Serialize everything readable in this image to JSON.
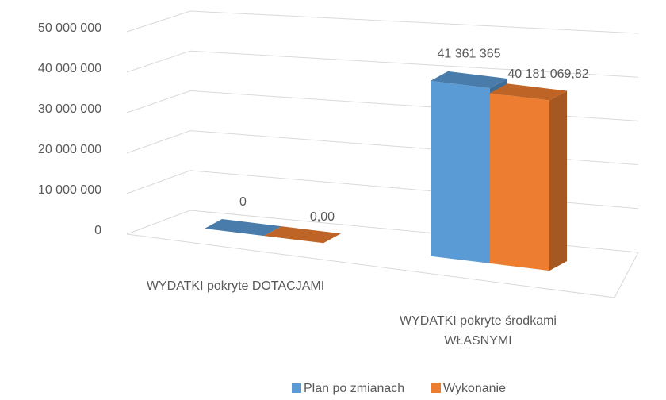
{
  "chart_data": {
    "type": "bar3d",
    "categories": [
      "WYDATKI pokryte DOTACJAMI",
      "WYDATKI pokryte środkami WŁASNYMI"
    ],
    "series": [
      {
        "name": "Plan po zmianach",
        "color": "#5b9bd5",
        "values": [
          0,
          41361365
        ],
        "value_labels": [
          "0",
          "41 361 365"
        ]
      },
      {
        "name": "Wykonanie",
        "color": "#ed7d31",
        "values": [
          0,
          40181069.82
        ],
        "value_labels": [
          "0,00",
          "40 181 069,82"
        ]
      }
    ],
    "ylim": [
      0,
      50000000
    ],
    "yticks": [
      0,
      {
        "value": 10000000,
        "label": "10 000 000"
      },
      {
        "value": 20000000,
        "label": "20 000 000"
      },
      {
        "value": 30000000,
        "label": "30 000 000"
      },
      {
        "value": 40000000,
        "label": "40 000 000"
      },
      {
        "value": 50000000,
        "label": "50 000 000"
      }
    ],
    "grid": true,
    "legend": "bottom"
  }
}
